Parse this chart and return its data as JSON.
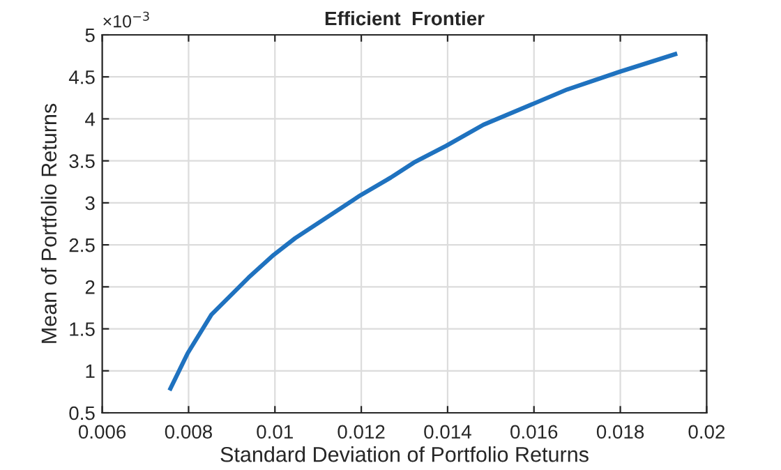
{
  "chart_data": {
    "type": "line",
    "title": "Efficient  Frontier",
    "xlabel": "Standard Deviation of Portfolio Returns",
    "ylabel": "Mean of Portfolio Returns",
    "annotations": [
      "×10$^{−3}$"
    ],
    "series": [
      {
        "color": "#1f72bf",
        "x": [
          0.00758,
          0.00798,
          0.00853,
          0.00939,
          0.00997,
          0.01047,
          0.01198,
          0.01268,
          0.01322,
          0.01397,
          0.01483,
          0.01677,
          0.01798,
          0.01927
        ],
        "values": [
          0.79,
          1.21,
          1.67,
          2.11,
          2.38,
          2.58,
          3.09,
          3.3,
          3.48,
          3.68,
          3.93,
          4.35,
          4.56,
          4.77
        ]
      }
    ],
    "xlim": [
      0.006,
      0.02
    ],
    "xticks": [
      0.006,
      0.008,
      0.01,
      0.012,
      0.014,
      0.016,
      0.018,
      0.02
    ],
    "ylim": [
      0.5,
      5
    ],
    "yticks": [
      0.5,
      1,
      1.5,
      2,
      2.5,
      3,
      3.5,
      4,
      4.5,
      5
    ],
    "grid": true,
    "legend": false,
    "marker": "none",
    "line_style": "solid"
  }
}
